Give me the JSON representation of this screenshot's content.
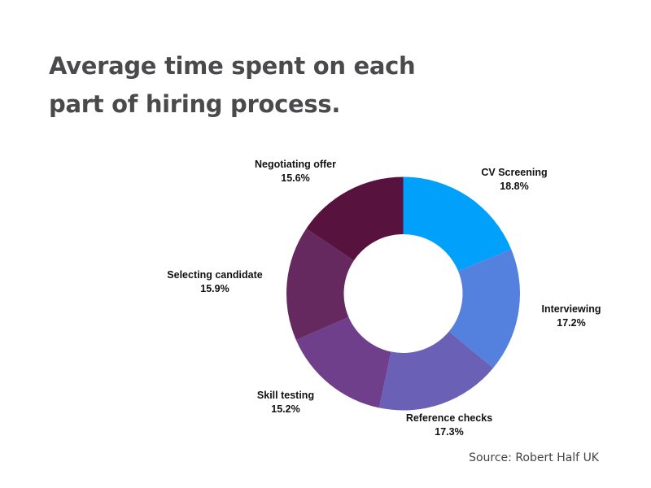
{
  "chart_data": {
    "type": "pie",
    "variant": "donut",
    "title": "Average time spent on each part of hiring process.",
    "categories": [
      "CV Screening",
      "Interviewing",
      "Reference checks",
      "Skill testing",
      "Selecting candidate",
      "Negotiating offer"
    ],
    "values": [
      18.8,
      17.2,
      17.3,
      15.2,
      15.9,
      15.6
    ],
    "value_labels": [
      "18.8%",
      "17.2%",
      "17.3%",
      "15.2%",
      "15.9%",
      "15.6%"
    ],
    "colors": [
      "#00a0fb",
      "#5581de",
      "#6a60b5",
      "#6f3f8b",
      "#66295f",
      "#58123e"
    ],
    "legend": "none",
    "start_angle": "12 o'clock, clockwise"
  },
  "source": "Source: Robert Half UK"
}
